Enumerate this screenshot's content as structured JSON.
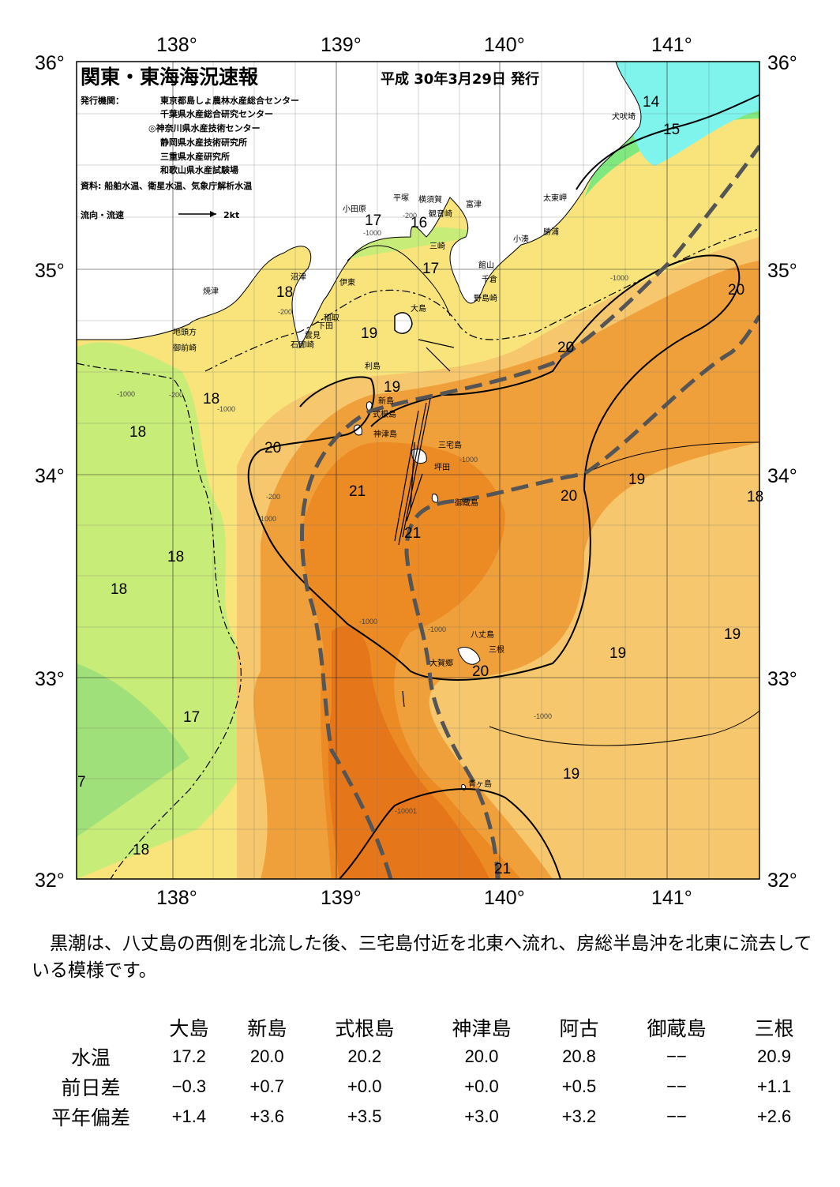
{
  "map": {
    "title": "関東・東海海況速報",
    "issue_date": "平成 30年3月29日 発行",
    "publisher_label": "発行機関：",
    "publishers": [
      "東京都島しょ農林水産総合センター",
      "千葉県水産総合研究センター",
      "◎神奈川県水産技術センター",
      "静岡県水産技術研究所",
      "三重県水産研究所",
      "和歌山県水産試験場"
    ],
    "source": "資料: 船舶水温、衛星水温、気象庁解析水温",
    "legend_current": "流向・流速",
    "legend_scale": "2kt",
    "longitudes": [
      "138°",
      "139°",
      "140°",
      "141°"
    ],
    "latitudes": [
      "36°",
      "35°",
      "34°",
      "33°",
      "32°"
    ],
    "isotherm_labels": [
      "14",
      "15",
      "16",
      "17",
      "17",
      "18",
      "18",
      "18",
      "18",
      "18",
      "18",
      "19",
      "19",
      "19",
      "19",
      "19",
      "19",
      "20",
      "20",
      "20",
      "20",
      "20",
      "21",
      "21",
      "21",
      "17",
      "18",
      "7"
    ],
    "depth_labels": [
      "-200",
      "-1000",
      "-200",
      "-1000",
      "-200",
      "-1000",
      "-1000",
      "-1000",
      "-200",
      "-1000",
      "-1000",
      "-1000",
      "-1000",
      "-10001"
    ],
    "places": [
      "犬吠埼",
      "太東岬",
      "勝浦",
      "小湊",
      "館山",
      "千倉",
      "野島崎",
      "富津",
      "横須賀",
      "観音崎",
      "三崎",
      "平塚",
      "小田原",
      "沼津",
      "伊東",
      "焼津",
      "稲取",
      "下田",
      "雲見",
      "石廊崎",
      "地頭方",
      "御前崎",
      "大島",
      "利島",
      "新島",
      "式根島",
      "神津島",
      "三宅島",
      "坪田",
      "御蔵島",
      "八丈島",
      "三根",
      "大賀郷",
      "青ヶ島"
    ],
    "colors": {
      "land": "#ffffff",
      "cold": "#7fe87f",
      "cool": "#c8ec78",
      "mild": "#f8e47a",
      "warm": "#f3bb5a",
      "hot": "#ef9a2e",
      "hotter": "#e97e1c",
      "kuroshio": "#555555"
    }
  },
  "summary": "黒潮は、八丈島の西側を北流した後、三宅島付近を北東へ流れ、房総半島沖を北東に流去している模様です。",
  "table": {
    "headers": [
      "大島",
      "新島",
      "式根島",
      "神津島",
      "阿古",
      "御蔵島",
      "三根"
    ],
    "rows": [
      {
        "label": "水温",
        "values": [
          "17.2",
          "20.0",
          "20.2",
          "20.0",
          "20.8",
          "−−",
          "20.9"
        ]
      },
      {
        "label": "前日差",
        "values": [
          "−0.3",
          "+0.7",
          "+0.0",
          "+0.0",
          "+0.5",
          "−−",
          "+1.1"
        ]
      },
      {
        "label": "平年偏差",
        "values": [
          "+1.4",
          "+3.6",
          "+3.5",
          "+3.0",
          "+3.2",
          "−−",
          "+2.6"
        ]
      }
    ]
  }
}
